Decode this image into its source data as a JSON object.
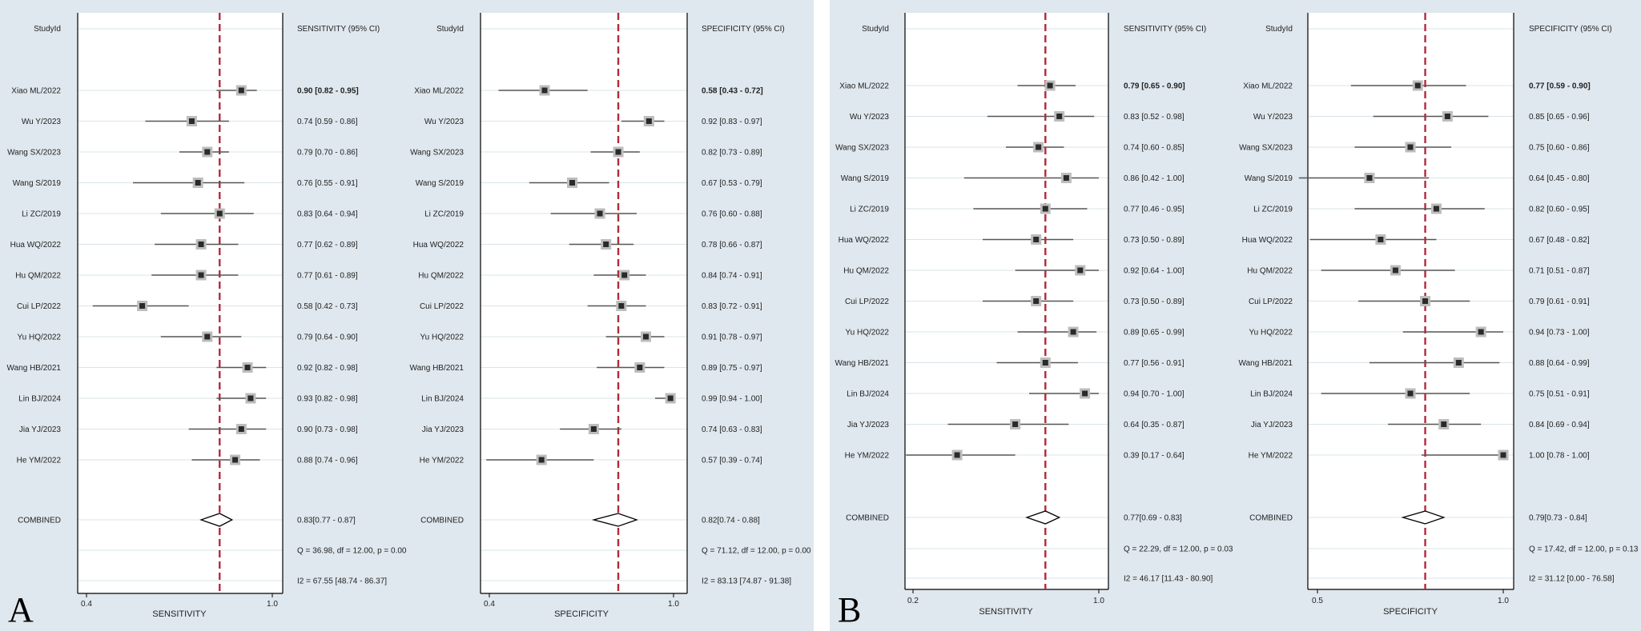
{
  "panels": [
    {
      "letter": "A",
      "plots": [
        {
          "id": "A-sens",
          "header_study": "StudyId",
          "header_ci": "SENSITIVITY (95% CI)",
          "xlabel": "SENSITIVITY",
          "xlim": [
            0.4,
            1.0
          ],
          "ticks": [
            {
              "v": 0.4,
              "label": "0.4"
            },
            {
              "v": 1.0,
              "label": "1.0"
            }
          ],
          "reference": 0.83,
          "studies": [
            {
              "name": "Xiao ML/2022",
              "est": 0.9,
              "lo": 0.82,
              "hi": 0.95,
              "ci": "0.90 [0.82 - 0.95]"
            },
            {
              "name": "Wu Y/2023",
              "est": 0.74,
              "lo": 0.59,
              "hi": 0.86,
              "ci": "0.74 [0.59 - 0.86]"
            },
            {
              "name": "Wang SX/2023",
              "est": 0.79,
              "lo": 0.7,
              "hi": 0.86,
              "ci": "0.79 [0.70 - 0.86]"
            },
            {
              "name": "Wang S/2019",
              "est": 0.76,
              "lo": 0.55,
              "hi": 0.91,
              "ci": "0.76 [0.55 - 0.91]"
            },
            {
              "name": "Li ZC/2019",
              "est": 0.83,
              "lo": 0.64,
              "hi": 0.94,
              "ci": "0.83 [0.64 - 0.94]"
            },
            {
              "name": "Hua WQ/2022",
              "est": 0.77,
              "lo": 0.62,
              "hi": 0.89,
              "ci": "0.77 [0.62 - 0.89]"
            },
            {
              "name": "Hu QM/2022",
              "est": 0.77,
              "lo": 0.61,
              "hi": 0.89,
              "ci": "0.77 [0.61 - 0.89]"
            },
            {
              "name": "Cui LP/2022",
              "est": 0.58,
              "lo": 0.42,
              "hi": 0.73,
              "ci": "0.58 [0.42 - 0.73]"
            },
            {
              "name": "Yu HQ/2022",
              "est": 0.79,
              "lo": 0.64,
              "hi": 0.9,
              "ci": "0.79 [0.64 - 0.90]"
            },
            {
              "name": "Wang HB/2021",
              "est": 0.92,
              "lo": 0.82,
              "hi": 0.98,
              "ci": "0.92 [0.82 - 0.98]"
            },
            {
              "name": "Lin BJ/2024",
              "est": 0.93,
              "lo": 0.82,
              "hi": 0.98,
              "ci": "0.93 [0.82 - 0.98]"
            },
            {
              "name": "Jia YJ/2023",
              "est": 0.9,
              "lo": 0.73,
              "hi": 0.98,
              "ci": "0.90 [0.73 - 0.98]"
            },
            {
              "name": "He YM/2022",
              "est": 0.88,
              "lo": 0.74,
              "hi": 0.96,
              "ci": "0.88 [0.74 - 0.96]"
            }
          ],
          "combined": {
            "name": "COMBINED",
            "est": 0.83,
            "lo": 0.77,
            "hi": 0.87,
            "ci": "0.83[0.77 - 0.87]"
          },
          "q_stat": "Q = 36.98, df = 12.00, p =  0.00",
          "i2_stat": "I2 = 67.55 [48.74 - 86.37]"
        },
        {
          "id": "A-spec",
          "header_study": "StudyId",
          "header_ci": "SPECIFICITY (95% CI)",
          "xlabel": "SPECIFICITY",
          "xlim": [
            0.4,
            1.0
          ],
          "ticks": [
            {
              "v": 0.4,
              "label": "0.4"
            },
            {
              "v": 1.0,
              "label": "1.0"
            }
          ],
          "reference": 0.82,
          "studies": [
            {
              "name": "Xiao ML/2022",
              "est": 0.58,
              "lo": 0.43,
              "hi": 0.72,
              "ci": "0.58 [0.43 - 0.72]"
            },
            {
              "name": "Wu Y/2023",
              "est": 0.92,
              "lo": 0.83,
              "hi": 0.97,
              "ci": "0.92 [0.83 - 0.97]"
            },
            {
              "name": "Wang SX/2023",
              "est": 0.82,
              "lo": 0.73,
              "hi": 0.89,
              "ci": "0.82 [0.73 - 0.89]"
            },
            {
              "name": "Wang S/2019",
              "est": 0.67,
              "lo": 0.53,
              "hi": 0.79,
              "ci": "0.67 [0.53 - 0.79]"
            },
            {
              "name": "Li ZC/2019",
              "est": 0.76,
              "lo": 0.6,
              "hi": 0.88,
              "ci": "0.76 [0.60 - 0.88]"
            },
            {
              "name": "Hua WQ/2022",
              "est": 0.78,
              "lo": 0.66,
              "hi": 0.87,
              "ci": "0.78 [0.66 - 0.87]"
            },
            {
              "name": "Hu QM/2022",
              "est": 0.84,
              "lo": 0.74,
              "hi": 0.91,
              "ci": "0.84 [0.74 - 0.91]"
            },
            {
              "name": "Cui LP/2022",
              "est": 0.83,
              "lo": 0.72,
              "hi": 0.91,
              "ci": "0.83 [0.72 - 0.91]"
            },
            {
              "name": "Yu HQ/2022",
              "est": 0.91,
              "lo": 0.78,
              "hi": 0.97,
              "ci": "0.91 [0.78 - 0.97]"
            },
            {
              "name": "Wang HB/2021",
              "est": 0.89,
              "lo": 0.75,
              "hi": 0.97,
              "ci": "0.89 [0.75 - 0.97]"
            },
            {
              "name": "Lin BJ/2024",
              "est": 0.99,
              "lo": 0.94,
              "hi": 1.0,
              "ci": "0.99 [0.94 - 1.00]"
            },
            {
              "name": "Jia YJ/2023",
              "est": 0.74,
              "lo": 0.63,
              "hi": 0.83,
              "ci": "0.74 [0.63 - 0.83]"
            },
            {
              "name": "He YM/2022",
              "est": 0.57,
              "lo": 0.39,
              "hi": 0.74,
              "ci": "0.57 [0.39 - 0.74]"
            }
          ],
          "combined": {
            "name": "COMBINED",
            "est": 0.82,
            "lo": 0.74,
            "hi": 0.88,
            "ci": "0.82[0.74 - 0.88]"
          },
          "q_stat": "Q = 71.12, df = 12.00, p =  0.00",
          "i2_stat": "I2 = 83.13 [74.87 - 91.38]"
        }
      ]
    },
    {
      "letter": "B",
      "plots": [
        {
          "id": "B-sens",
          "header_study": "StudyId",
          "header_ci": "SENSITIVITY (95% CI)",
          "xlabel": "SENSITIVITY",
          "xlim": [
            0.2,
            1.0
          ],
          "ticks": [
            {
              "v": 0.2,
              "label": "0.2"
            },
            {
              "v": 1.0,
              "label": "1.0"
            }
          ],
          "reference": 0.77,
          "studies": [
            {
              "name": "Xiao ML/2022",
              "est": 0.79,
              "lo": 0.65,
              "hi": 0.9,
              "ci": "0.79 [0.65 - 0.90]"
            },
            {
              "name": "Wu Y/2023",
              "est": 0.83,
              "lo": 0.52,
              "hi": 0.98,
              "ci": "0.83 [0.52 - 0.98]"
            },
            {
              "name": "Wang SX/2023",
              "est": 0.74,
              "lo": 0.6,
              "hi": 0.85,
              "ci": "0.74 [0.60 - 0.85]"
            },
            {
              "name": "Wang S/2019",
              "est": 0.86,
              "lo": 0.42,
              "hi": 1.0,
              "ci": "0.86 [0.42 - 1.00]"
            },
            {
              "name": "Li ZC/2019",
              "est": 0.77,
              "lo": 0.46,
              "hi": 0.95,
              "ci": "0.77 [0.46 - 0.95]"
            },
            {
              "name": "Hua WQ/2022",
              "est": 0.73,
              "lo": 0.5,
              "hi": 0.89,
              "ci": "0.73 [0.50 - 0.89]"
            },
            {
              "name": "Hu QM/2022",
              "est": 0.92,
              "lo": 0.64,
              "hi": 1.0,
              "ci": "0.92 [0.64 - 1.00]"
            },
            {
              "name": "Cui LP/2022",
              "est": 0.73,
              "lo": 0.5,
              "hi": 0.89,
              "ci": "0.73 [0.50 - 0.89]"
            },
            {
              "name": "Yu HQ/2022",
              "est": 0.89,
              "lo": 0.65,
              "hi": 0.99,
              "ci": "0.89 [0.65 - 0.99]"
            },
            {
              "name": "Wang HB/2021",
              "est": 0.77,
              "lo": 0.56,
              "hi": 0.91,
              "ci": "0.77 [0.56 - 0.91]"
            },
            {
              "name": "Lin BJ/2024",
              "est": 0.94,
              "lo": 0.7,
              "hi": 1.0,
              "ci": "0.94 [0.70 - 1.00]"
            },
            {
              "name": "Jia YJ/2023",
              "est": 0.64,
              "lo": 0.35,
              "hi": 0.87,
              "ci": "0.64 [0.35 - 0.87]"
            },
            {
              "name": "He YM/2022",
              "est": 0.39,
              "lo": 0.17,
              "hi": 0.64,
              "ci": "0.39 [0.17 - 0.64]"
            }
          ],
          "combined": {
            "name": "COMBINED",
            "est": 0.77,
            "lo": 0.69,
            "hi": 0.83,
            "ci": "0.77[0.69 - 0.83]"
          },
          "q_stat": "Q = 22.29, df = 12.00, p =  0.03",
          "i2_stat": "I2 = 46.17 [11.43 - 80.90]"
        },
        {
          "id": "B-spec",
          "header_study": "StudyId",
          "header_ci": "SPECIFICITY (95% CI)",
          "xlabel": "SPECIFICITY",
          "xlim": [
            0.5,
            1.0
          ],
          "ticks": [
            {
              "v": 0.5,
              "label": "0.5"
            },
            {
              "v": 1.0,
              "label": "1.0"
            }
          ],
          "reference": 0.79,
          "studies": [
            {
              "name": "Xiao ML/2022",
              "est": 0.77,
              "lo": 0.59,
              "hi": 0.9,
              "ci": "0.77 [0.59 - 0.90]"
            },
            {
              "name": "Wu Y/2023",
              "est": 0.85,
              "lo": 0.65,
              "hi": 0.96,
              "ci": "0.85 [0.65 - 0.96]"
            },
            {
              "name": "Wang SX/2023",
              "est": 0.75,
              "lo": 0.6,
              "hi": 0.86,
              "ci": "0.75 [0.60 - 0.86]"
            },
            {
              "name": "Wang S/2019",
              "est": 0.64,
              "lo": 0.45,
              "hi": 0.8,
              "ci": "0.64 [0.45 - 0.80]"
            },
            {
              "name": "Li ZC/2019",
              "est": 0.82,
              "lo": 0.6,
              "hi": 0.95,
              "ci": "0.82 [0.60 - 0.95]"
            },
            {
              "name": "Hua WQ/2022",
              "est": 0.67,
              "lo": 0.48,
              "hi": 0.82,
              "ci": "0.67 [0.48 - 0.82]"
            },
            {
              "name": "Hu QM/2022",
              "est": 0.71,
              "lo": 0.51,
              "hi": 0.87,
              "ci": "0.71 [0.51 - 0.87]"
            },
            {
              "name": "Cui LP/2022",
              "est": 0.79,
              "lo": 0.61,
              "hi": 0.91,
              "ci": "0.79 [0.61 - 0.91]"
            },
            {
              "name": "Yu HQ/2022",
              "est": 0.94,
              "lo": 0.73,
              "hi": 1.0,
              "ci": "0.94 [0.73 - 1.00]"
            },
            {
              "name": "Wang HB/2021",
              "est": 0.88,
              "lo": 0.64,
              "hi": 0.99,
              "ci": "0.88 [0.64 - 0.99]"
            },
            {
              "name": "Lin BJ/2024",
              "est": 0.75,
              "lo": 0.51,
              "hi": 0.91,
              "ci": "0.75 [0.51 - 0.91]"
            },
            {
              "name": "Jia YJ/2023",
              "est": 0.84,
              "lo": 0.69,
              "hi": 0.94,
              "ci": "0.84 [0.69 - 0.94]"
            },
            {
              "name": "He YM/2022",
              "est": 1.0,
              "lo": 0.78,
              "hi": 1.0,
              "ci": "1.00 [0.78 - 1.00]"
            }
          ],
          "combined": {
            "name": "COMBINED",
            "est": 0.79,
            "lo": 0.73,
            "hi": 0.84,
            "ci": "0.79[0.73 - 0.84]"
          },
          "q_stat": "Q = 17.42, df = 12.00, p =  0.13",
          "i2_stat": "I2 = 31.12 [0.00 - 76.58]"
        }
      ]
    }
  ],
  "chart_data": [
    {
      "type": "forest",
      "title": "A - Sensitivity",
      "xlabel": "SENSITIVITY",
      "xlim": [
        0.4,
        1.0
      ],
      "pooled": 0.83
    },
    {
      "type": "forest",
      "title": "A - Specificity",
      "xlabel": "SPECIFICITY",
      "xlim": [
        0.4,
        1.0
      ],
      "pooled": 0.82
    },
    {
      "type": "forest",
      "title": "B - Sensitivity",
      "xlabel": "SENSITIVITY",
      "xlim": [
        0.2,
        1.0
      ],
      "pooled": 0.77
    },
    {
      "type": "forest",
      "title": "B - Specificity",
      "xlabel": "SPECIFICITY",
      "xlim": [
        0.5,
        1.0
      ],
      "pooled": 0.79
    }
  ],
  "colors": {
    "panel_bg": "#dfe8ee",
    "plot_bg": "#ffffff",
    "grid": "#d9e4ea",
    "reference_line": "#b22a3c",
    "ci_line": "#555555",
    "marker_fill": "#2a2a2a",
    "text": "#222222"
  }
}
